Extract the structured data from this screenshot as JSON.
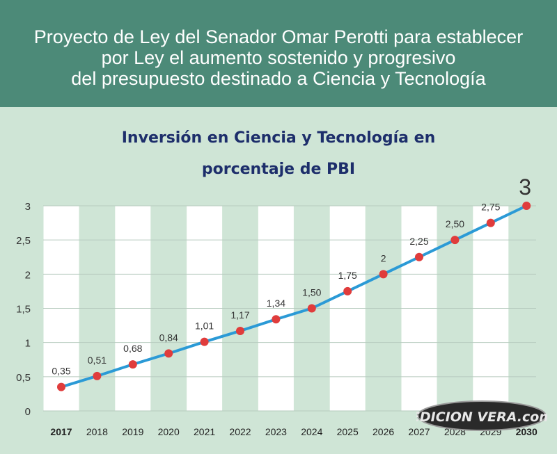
{
  "banner": {
    "line1": "Proyecto de Ley del Senador Omar Perotti para establecer",
    "line2": "por Ley el aumento sostenido y progresivo",
    "line3": "del presupuesto destinado a Ciencia y Tecnología"
  },
  "watermark": {
    "text": "EDICION VERA.com"
  },
  "colors": {
    "banner": "#4c8a78",
    "background": "#cfe5d6",
    "line": "#2b9ad6",
    "marker": "#e03c3c",
    "title": "#1d2e6b"
  },
  "chart_data": {
    "type": "line",
    "title_line1": "Inversión en Ciencia y Tecnología en",
    "title_line2": "porcentaje de PBI",
    "xlabel": "",
    "ylabel": "",
    "categories": [
      "2017",
      "2018",
      "2019",
      "2020",
      "2021",
      "2022",
      "2023",
      "2024",
      "2025",
      "2026",
      "2027",
      "2028",
      "2029",
      "2030"
    ],
    "bold_categories": [
      "2017",
      "2030"
    ],
    "values": [
      0.35,
      0.51,
      0.68,
      0.84,
      1.01,
      1.17,
      1.34,
      1.5,
      1.75,
      2,
      2.25,
      2.5,
      2.75,
      3
    ],
    "data_labels": [
      "0,35",
      "0,51",
      "0,68",
      "0,84",
      "1,01",
      "1,17",
      "1,34",
      "1,50",
      "1,75",
      "2",
      "2,25",
      "2,50",
      "2,75",
      "3"
    ],
    "y_ticks": [
      0,
      0.5,
      1,
      1.5,
      2,
      2.5,
      3
    ],
    "y_tick_labels": [
      "0",
      "0,5",
      "1",
      "1,5",
      "2",
      "2,5",
      "3"
    ],
    "ylim": [
      0,
      3
    ],
    "grid": true,
    "legend": "none"
  }
}
